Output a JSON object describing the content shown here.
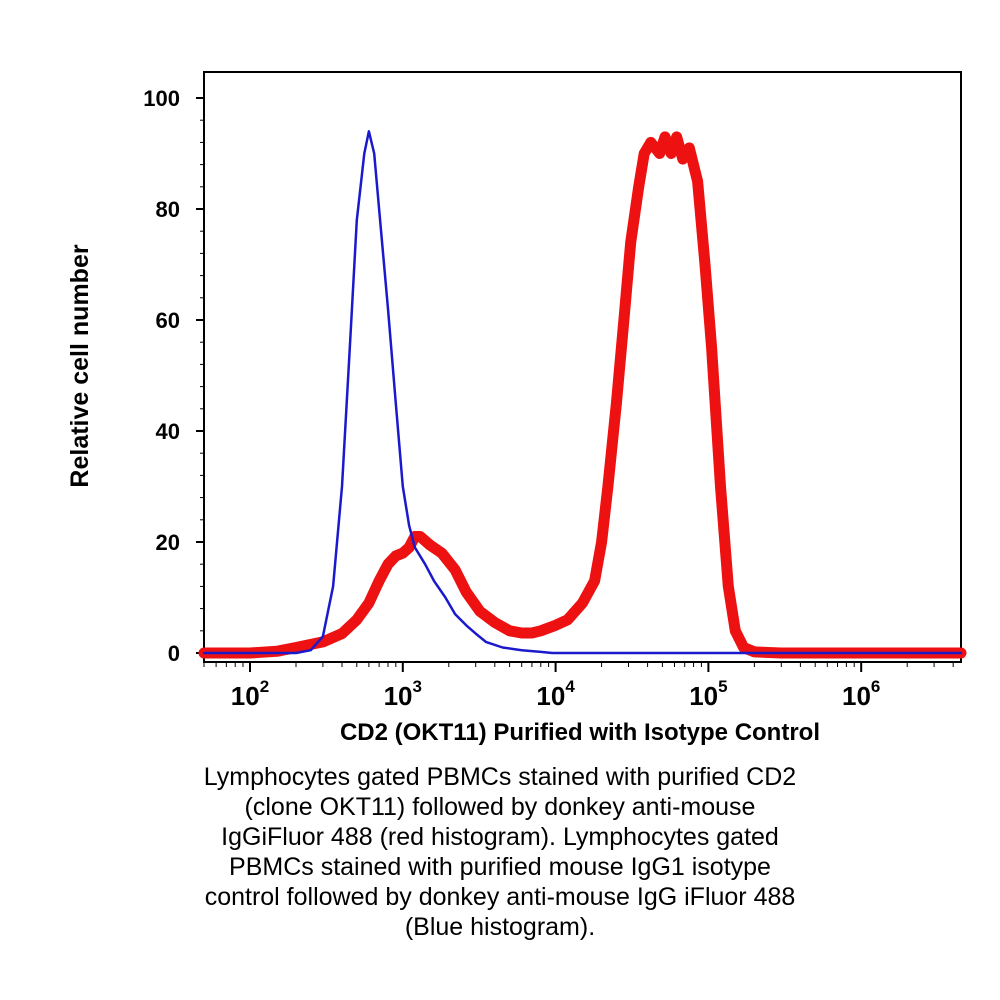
{
  "chart_data": {
    "type": "line",
    "ylabel": "Relative cell number",
    "xlabel": "CD2 (OKT11) Purified with Isotype Control",
    "xscale": "log",
    "xlim": [
      50,
      4500000
    ],
    "ylim": [
      0,
      100
    ],
    "yticks": [
      "0",
      "20",
      "40",
      "60",
      "80",
      "100"
    ],
    "xticks": [
      {
        "base": "10",
        "exp": "2"
      },
      {
        "base": "10",
        "exp": "3"
      },
      {
        "base": "10",
        "exp": "4"
      },
      {
        "base": "10",
        "exp": "5"
      },
      {
        "base": "10",
        "exp": "6"
      }
    ],
    "grid": false,
    "series": [
      {
        "color": "#ee1111",
        "points": [
          [
            50,
            0
          ],
          [
            100,
            0
          ],
          [
            150,
            0.3
          ],
          [
            200,
            1
          ],
          [
            300,
            2
          ],
          [
            400,
            3.5
          ],
          [
            500,
            6
          ],
          [
            600,
            9
          ],
          [
            700,
            13
          ],
          [
            800,
            16
          ],
          [
            900,
            17.5
          ],
          [
            1000,
            18
          ],
          [
            1100,
            19
          ],
          [
            1200,
            21
          ],
          [
            1300,
            21
          ],
          [
            1500,
            19.5
          ],
          [
            1800,
            18
          ],
          [
            2200,
            15
          ],
          [
            2600,
            11
          ],
          [
            3200,
            7.5
          ],
          [
            4000,
            5.5
          ],
          [
            5000,
            4
          ],
          [
            6000,
            3.6
          ],
          [
            7000,
            3.6
          ],
          [
            8000,
            4
          ],
          [
            10000,
            5
          ],
          [
            12000,
            6
          ],
          [
            15000,
            9
          ],
          [
            18000,
            13
          ],
          [
            20000,
            20
          ],
          [
            22000,
            30
          ],
          [
            25000,
            45
          ],
          [
            28000,
            60
          ],
          [
            31000,
            74
          ],
          [
            35000,
            84
          ],
          [
            38000,
            90
          ],
          [
            42000,
            92
          ],
          [
            48000,
            90
          ],
          [
            52000,
            93
          ],
          [
            57000,
            90
          ],
          [
            62000,
            93
          ],
          [
            68000,
            89
          ],
          [
            75000,
            91
          ],
          [
            85000,
            85
          ],
          [
            95000,
            70
          ],
          [
            105000,
            55
          ],
          [
            120000,
            30
          ],
          [
            135000,
            12
          ],
          [
            150000,
            4
          ],
          [
            170000,
            1
          ],
          [
            200000,
            0.2
          ],
          [
            300000,
            0
          ],
          [
            4500000,
            0
          ]
        ]
      },
      {
        "color": "#1a1acc",
        "points": [
          [
            50,
            0
          ],
          [
            100,
            0
          ],
          [
            200,
            0
          ],
          [
            250,
            0.5
          ],
          [
            300,
            3
          ],
          [
            350,
            12
          ],
          [
            400,
            30
          ],
          [
            450,
            55
          ],
          [
            500,
            78
          ],
          [
            560,
            90
          ],
          [
            600,
            94
          ],
          [
            650,
            90
          ],
          [
            700,
            80
          ],
          [
            800,
            62
          ],
          [
            900,
            45
          ],
          [
            1000,
            30
          ],
          [
            1100,
            23
          ],
          [
            1200,
            19
          ],
          [
            1400,
            16
          ],
          [
            1600,
            13
          ],
          [
            1900,
            10
          ],
          [
            2200,
            7
          ],
          [
            2600,
            5
          ],
          [
            3000,
            3.5
          ],
          [
            3500,
            2
          ],
          [
            4500,
            1
          ],
          [
            6000,
            0.5
          ],
          [
            8000,
            0.2
          ],
          [
            9500,
            0
          ],
          [
            4500000,
            0
          ]
        ]
      }
    ]
  },
  "caption_lines": [
    "Lymphocytes gated PBMCs stained with purified CD2",
    "(clone OKT11) followed by donkey anti-mouse",
    "IgGiFluor 488 (red histogram). Lymphocytes gated",
    "PBMCs stained with purified mouse IgG1 isotype",
    "control followed by donkey anti-mouse IgG iFluor 488",
    "(Blue histogram)."
  ]
}
